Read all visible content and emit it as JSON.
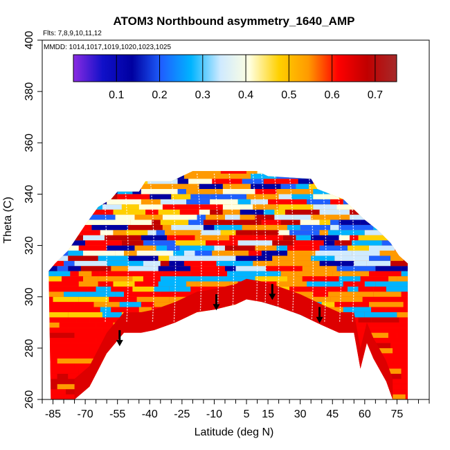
{
  "chart_data": {
    "type": "heatmap",
    "title": "ATOM3 Northbound asymmetry_1640_AMP",
    "flights_note": "Flts: 7,8,9,10,11,12",
    "dates_note": "MMDD: 1014,1017,1019,1020,1023,1025",
    "xlabel": "Latitude (deg N)",
    "ylabel": "Theta (C)",
    "xlim": [
      -90,
      90
    ],
    "ylim": [
      260,
      400
    ],
    "x_ticks": [
      -85,
      -70,
      -55,
      -40,
      -25,
      -10,
      5,
      15,
      30,
      45,
      60,
      75
    ],
    "x_tick_labels": [
      "-85",
      "-70",
      "-55",
      "-40",
      "-25",
      "-10",
      "5",
      "15",
      "30",
      "45",
      "60",
      "75"
    ],
    "x_minor_ticks": [
      -90,
      -80,
      -75,
      -65,
      -60,
      -50,
      -45,
      -35,
      -30,
      -20,
      -15,
      -5,
      0,
      10,
      20,
      25,
      35,
      40,
      50,
      55,
      65,
      70,
      80,
      85,
      90
    ],
    "y_ticks": [
      260,
      280,
      300,
      320,
      340,
      360,
      380,
      400
    ],
    "y_tick_labels": [
      "260",
      "280",
      "300",
      "320",
      "340",
      "360",
      "380",
      "400"
    ],
    "colorbar": {
      "range": [
        0.0,
        0.75
      ],
      "ticks": [
        0.1,
        0.2,
        0.3,
        0.4,
        0.5,
        0.6,
        0.7
      ],
      "tick_labels": [
        "0.1",
        "0.2",
        "0.3",
        "0.4",
        "0.5",
        "0.6",
        "0.7"
      ],
      "stops": [
        "#8a2be2",
        "#1010c8",
        "#0000a0",
        "#1e60ff",
        "#00b4ff",
        "#cfeaff",
        "#ffffe0",
        "#ffd000",
        "#ff9a00",
        "#ff0000",
        "#c00000",
        "#a52a2a"
      ]
    },
    "arrows": [
      {
        "lat": -54,
        "theta": 281
      },
      {
        "lat": -9,
        "theta": 295
      },
      {
        "lat": 17,
        "theta": 299
      },
      {
        "lat": 39,
        "theta": 290
      }
    ],
    "lower_boundary": [
      {
        "lat": -75,
        "theta": 260
      },
      {
        "lat": -68,
        "theta": 265
      },
      {
        "lat": -60,
        "theta": 278
      },
      {
        "lat": -52,
        "theta": 286
      },
      {
        "lat": -44,
        "theta": 286
      },
      {
        "lat": -38,
        "theta": 287
      },
      {
        "lat": -28,
        "theta": 290
      },
      {
        "lat": -18,
        "theta": 294
      },
      {
        "lat": -10,
        "theta": 295
      },
      {
        "lat": 0,
        "theta": 297
      },
      {
        "lat": 5,
        "theta": 299
      },
      {
        "lat": 12,
        "theta": 298
      },
      {
        "lat": 20,
        "theta": 296
      },
      {
        "lat": 30,
        "theta": 293
      },
      {
        "lat": 40,
        "theta": 289
      },
      {
        "lat": 48,
        "theta": 286
      },
      {
        "lat": 55,
        "theta": 286
      },
      {
        "lat": 58,
        "theta": 272
      },
      {
        "lat": 61,
        "theta": 282
      },
      {
        "lat": 64,
        "theta": 276
      },
      {
        "lat": 70,
        "theta": 267
      },
      {
        "lat": 73,
        "theta": 260
      }
    ],
    "upper_boundary": [
      {
        "lat": -86,
        "theta": 260
      },
      {
        "lat": -87,
        "theta": 310
      },
      {
        "lat": -84,
        "theta": 313
      },
      {
        "lat": -78,
        "theta": 318
      },
      {
        "lat": -70,
        "theta": 328
      },
      {
        "lat": -64,
        "theta": 335
      },
      {
        "lat": -58,
        "theta": 338
      },
      {
        "lat": -55,
        "theta": 341
      },
      {
        "lat": -45,
        "theta": 341
      },
      {
        "lat": -42,
        "theta": 345
      },
      {
        "lat": -30,
        "theta": 345
      },
      {
        "lat": -25,
        "theta": 347
      },
      {
        "lat": -20,
        "theta": 349
      },
      {
        "lat": 10,
        "theta": 349
      },
      {
        "lat": 15,
        "theta": 347
      },
      {
        "lat": 35,
        "theta": 346
      },
      {
        "lat": 38,
        "theta": 342
      },
      {
        "lat": 50,
        "theta": 338
      },
      {
        "lat": 60,
        "theta": 330
      },
      {
        "lat": 66,
        "theta": 326
      },
      {
        "lat": 72,
        "theta": 321
      },
      {
        "lat": 76,
        "theta": 316
      },
      {
        "lat": 80,
        "theta": 313
      },
      {
        "lat": 80,
        "theta": 260
      }
    ]
  }
}
